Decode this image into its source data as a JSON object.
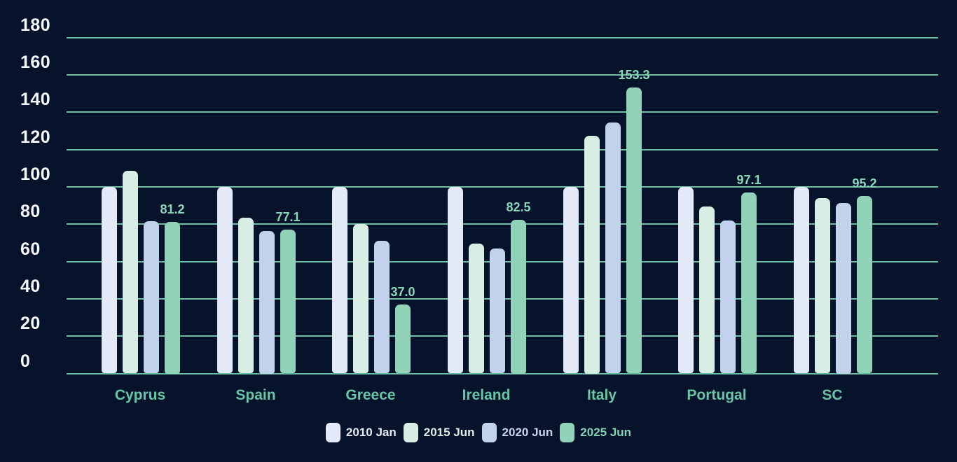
{
  "colors": {
    "background": "#06132b",
    "gridline": "#6cbda1",
    "y_axis_text": "#f5f7fb",
    "category_label_text": "#68c6a7",
    "value_label_text": "#8cd6ba"
  },
  "chart_data": {
    "type": "bar",
    "title": "",
    "xlabel": "",
    "ylabel": "",
    "grid": true,
    "legend_position": "bottom",
    "categories": [
      "Cyprus",
      "Spain",
      "Greece",
      "Ireland",
      "Italy",
      "Portugal",
      "SC"
    ],
    "series": [
      {
        "name": "2010 Jan",
        "color": "#e3e9f7",
        "legend_text_color": "#e7ebf7",
        "values": [
          100.0,
          100.0,
          100.0,
          100.0,
          100.0,
          100.0,
          100.0
        ]
      },
      {
        "name": "2015 Jun",
        "color": "#d8ede4",
        "legend_text_color": "#ddeee6",
        "values": [
          108.5,
          83.5,
          80.0,
          69.5,
          127.5,
          89.5,
          94.0
        ]
      },
      {
        "name": "2020 Jun",
        "color": "#c2d2ec",
        "legend_text_color": "#c7d4ee",
        "values": [
          81.5,
          76.5,
          71.0,
          67.0,
          134.5,
          82.0,
          91.5
        ]
      },
      {
        "name": "2025 Jun",
        "color": "#90d3b9",
        "legend_text_color": "#85d2b3",
        "values": [
          81.2,
          77.1,
          37.0,
          82.5,
          153.3,
          97.1,
          95.2
        ],
        "point_labels": [
          "81.2",
          "77.1",
          "37.0",
          "82.5",
          "153.3",
          "97.1",
          "95.2"
        ]
      }
    ],
    "y_axis": {
      "min": 0,
      "max": 180,
      "tick_step": 20,
      "tick_labels": [
        "0",
        "20",
        "40",
        "60",
        "80",
        "100",
        "120",
        "140",
        "160",
        "180"
      ]
    },
    "legend_items": [
      "2010 Jan",
      "2015 Jun",
      "2020 Jun",
      "2025 Jun"
    ]
  }
}
